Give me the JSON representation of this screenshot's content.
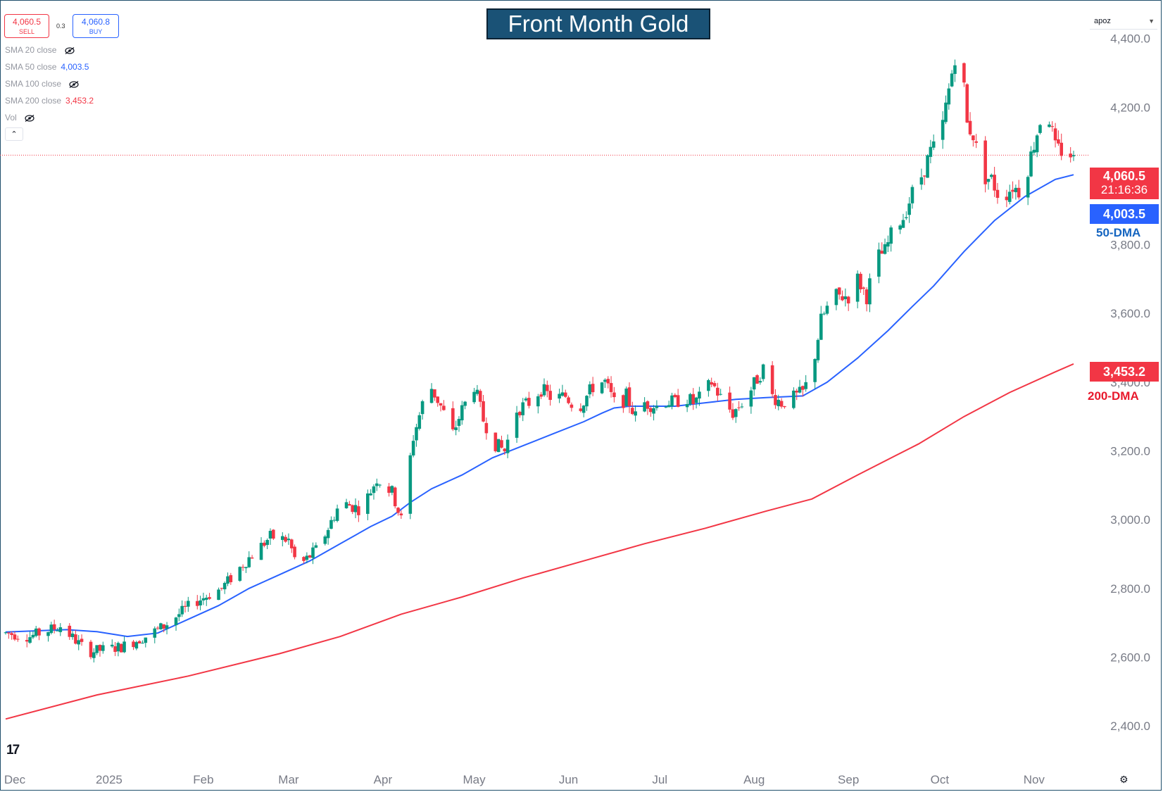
{
  "title": "Front Month Gold",
  "trade": {
    "sell_price": "4,060.5",
    "sell_label": "SELL",
    "buy_price": "4,060.8",
    "buy_label": "BUY",
    "spread": "0.3"
  },
  "legend": [
    {
      "label": "SMA 20 close",
      "value": "",
      "hidden": true
    },
    {
      "label": "SMA 50 close",
      "value": "4,003.5",
      "hidden": false,
      "color": "#2962ff"
    },
    {
      "label": "SMA 100 close",
      "value": "",
      "hidden": true
    },
    {
      "label": "SMA 200 close",
      "value": "3,453.2",
      "hidden": false,
      "color": "#f23645"
    },
    {
      "label": "Vol",
      "value": "",
      "hidden": true
    }
  ],
  "collapse_icon": "chevron-up-icon",
  "symbol_select": "apoz",
  "price_tags": {
    "last": "4,060.5",
    "countdown": "21:16:36",
    "sma50": "4,003.5",
    "sma200": "3,453.2"
  },
  "ma_labels": {
    "sma50": "50-DMA",
    "sma200": "200-DMA"
  },
  "colors": {
    "up": "#089981",
    "down": "#f23645",
    "sma50": "#2962ff",
    "sma200": "#f23645",
    "title_bg": "#1a5276"
  },
  "chart_data": {
    "type": "candlestick",
    "title": "Front Month Gold",
    "ylim": [
      2310,
      4430
    ],
    "y_ticks": [
      2400,
      2600,
      2800,
      3000,
      3200,
      3400,
      3600,
      3800,
      4000,
      4200,
      4400
    ],
    "y_tick_labels": [
      "2,400.0",
      "2,600.0",
      "2,800.0",
      "3,000.0",
      "3,200.0",
      "3,400.0",
      "3,600.0",
      "3,800.0",
      "4,000.0",
      "4,200.0",
      "4,400.0"
    ],
    "x_labels": [
      {
        "label": "Dec",
        "day": 3
      },
      {
        "label": "2025",
        "day": 34
      },
      {
        "label": "Feb",
        "day": 65
      },
      {
        "label": "Mar",
        "day": 93
      },
      {
        "label": "Apr",
        "day": 124
      },
      {
        "label": "May",
        "day": 154
      },
      {
        "label": "Jun",
        "day": 185
      },
      {
        "label": "Jul",
        "day": 215
      },
      {
        "label": "Aug",
        "day": 246
      },
      {
        "label": "Sep",
        "day": 277
      },
      {
        "label": "Oct",
        "day": 307
      },
      {
        "label": "Nov",
        "day": 338
      }
    ],
    "last_price": 4060.5,
    "candle_anchors": [
      [
        0,
        2670
      ],
      [
        8,
        2660
      ],
      [
        18,
        2690
      ],
      [
        27,
        2615
      ],
      [
        38,
        2630
      ],
      [
        46,
        2660
      ],
      [
        52,
        2690
      ],
      [
        62,
        2760
      ],
      [
        71,
        2800
      ],
      [
        79,
        2880
      ],
      [
        87,
        2950
      ],
      [
        93,
        2940
      ],
      [
        96,
        2860
      ],
      [
        103,
        2920
      ],
      [
        110,
        3050
      ],
      [
        117,
        3030
      ],
      [
        122,
        3120
      ],
      [
        127,
        3080
      ],
      [
        130,
        3000
      ],
      [
        134,
        3240
      ],
      [
        139,
        3400
      ],
      [
        143,
        3330
      ],
      [
        147,
        3250
      ],
      [
        150,
        3320
      ],
      [
        154,
        3390
      ],
      [
        157,
        3290
      ],
      [
        161,
        3220
      ],
      [
        164,
        3200
      ],
      [
        168,
        3320
      ],
      [
        172,
        3340
      ],
      [
        176,
        3380
      ],
      [
        180,
        3350
      ],
      [
        184,
        3360
      ],
      [
        188,
        3320
      ],
      [
        191,
        3360
      ],
      [
        194,
        3400
      ],
      [
        197,
        3400
      ],
      [
        201,
        3320
      ],
      [
        204,
        3360
      ],
      [
        207,
        3300
      ],
      [
        210,
        3340
      ],
      [
        214,
        3330
      ],
      [
        217,
        3345
      ],
      [
        220,
        3340
      ],
      [
        223,
        3360
      ],
      [
        226,
        3340
      ],
      [
        229,
        3360
      ],
      [
        232,
        3400
      ],
      [
        236,
        3340
      ],
      [
        239,
        3310
      ],
      [
        242,
        3340
      ],
      [
        245,
        3380
      ],
      [
        249,
        3440
      ],
      [
        252,
        3360
      ],
      [
        255,
        3340
      ],
      [
        258,
        3350
      ],
      [
        262,
        3370
      ],
      [
        265,
        3430
      ],
      [
        268,
        3580
      ],
      [
        272,
        3650
      ],
      [
        277,
        3650
      ],
      [
        280,
        3700
      ],
      [
        283,
        3650
      ],
      [
        286,
        3760
      ],
      [
        289,
        3780
      ],
      [
        292,
        3850
      ],
      [
        295,
        3880
      ],
      [
        298,
        3950
      ],
      [
        301,
        4000
      ],
      [
        304,
        4070
      ],
      [
        307,
        4100
      ],
      [
        309,
        4200
      ],
      [
        312,
        4350
      ],
      [
        314,
        4360
      ],
      [
        316,
        4150
      ],
      [
        318,
        4120
      ],
      [
        321,
        4000
      ],
      [
        324,
        3990
      ],
      [
        327,
        3930
      ],
      [
        331,
        3970
      ],
      [
        334,
        3950
      ],
      [
        337,
        4060
      ],
      [
        340,
        4160
      ],
      [
        342,
        4210
      ],
      [
        345,
        4080
      ],
      [
        348,
        4070
      ],
      [
        351,
        4060
      ]
    ],
    "series": [
      {
        "name": "50-DMA",
        "values": [
          [
            0,
            2673
          ],
          [
            20,
            2680
          ],
          [
            30,
            2674
          ],
          [
            40,
            2660
          ],
          [
            50,
            2670
          ],
          [
            60,
            2710
          ],
          [
            70,
            2750
          ],
          [
            80,
            2800
          ],
          [
            90,
            2840
          ],
          [
            100,
            2880
          ],
          [
            110,
            2930
          ],
          [
            120,
            2980
          ],
          [
            127,
            3010
          ],
          [
            133,
            3050
          ],
          [
            140,
            3090
          ],
          [
            150,
            3130
          ],
          [
            160,
            3180
          ],
          [
            170,
            3215
          ],
          [
            180,
            3250
          ],
          [
            190,
            3285
          ],
          [
            196,
            3310
          ],
          [
            200,
            3325
          ],
          [
            205,
            3330
          ],
          [
            210,
            3330
          ],
          [
            220,
            3330
          ],
          [
            230,
            3340
          ],
          [
            240,
            3350
          ],
          [
            250,
            3355
          ],
          [
            262,
            3360
          ],
          [
            270,
            3400
          ],
          [
            280,
            3470
          ],
          [
            290,
            3550
          ],
          [
            298,
            3620
          ],
          [
            305,
            3680
          ],
          [
            315,
            3780
          ],
          [
            325,
            3870
          ],
          [
            335,
            3940
          ],
          [
            345,
            3990
          ],
          [
            351,
            4003.5
          ]
        ]
      },
      {
        "name": "200-DMA",
        "values": [
          [
            0,
            2420
          ],
          [
            30,
            2490
          ],
          [
            60,
            2545
          ],
          [
            90,
            2610
          ],
          [
            110,
            2660
          ],
          [
            130,
            2725
          ],
          [
            150,
            2775
          ],
          [
            170,
            2830
          ],
          [
            190,
            2880
          ],
          [
            210,
            2930
          ],
          [
            230,
            2975
          ],
          [
            250,
            3025
          ],
          [
            265,
            3060
          ],
          [
            280,
            3130
          ],
          [
            300,
            3220
          ],
          [
            315,
            3300
          ],
          [
            330,
            3370
          ],
          [
            345,
            3430
          ],
          [
            351,
            3453.2
          ]
        ]
      }
    ]
  }
}
